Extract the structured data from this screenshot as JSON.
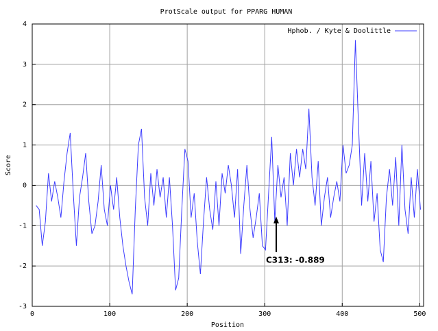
{
  "chart_data": {
    "type": "line",
    "title": "ProtScale output for PPARG HUMAN",
    "x_label": "Position",
    "y_label": "Score",
    "xlim": [
      0,
      505
    ],
    "ylim": [
      -3,
      4
    ],
    "xticks": [
      0,
      100,
      200,
      300,
      400,
      500
    ],
    "yticks": [
      -3,
      -2,
      -1,
      0,
      1,
      2,
      3,
      4
    ],
    "grid": true,
    "legend": "top-right",
    "x": [
      5,
      9,
      13,
      17,
      21,
      25,
      29,
      33,
      37,
      41,
      45,
      49,
      53,
      57,
      61,
      65,
      69,
      73,
      77,
      81,
      85,
      89,
      93,
      97,
      101,
      105,
      109,
      113,
      117,
      121,
      125,
      129,
      133,
      137,
      141,
      145,
      149,
      153,
      157,
      161,
      165,
      169,
      173,
      177,
      181,
      185,
      189,
      193,
      197,
      201,
      205,
      209,
      213,
      217,
      221,
      225,
      229,
      233,
      237,
      241,
      245,
      249,
      253,
      257,
      261,
      265,
      269,
      273,
      277,
      281,
      285,
      289,
      293,
      297,
      301,
      305,
      309,
      313,
      317,
      321,
      325,
      329,
      333,
      337,
      341,
      345,
      349,
      353,
      357,
      361,
      365,
      369,
      373,
      377,
      381,
      385,
      389,
      393,
      397,
      401,
      405,
      409,
      413,
      417,
      421,
      425,
      429,
      433,
      437,
      441,
      445,
      449,
      453,
      457,
      461,
      465,
      469,
      473,
      477,
      481,
      485,
      489,
      493,
      497,
      501
    ],
    "series": [
      {
        "name": "Hphob. / Kyte & Doolittle",
        "color": "#3c3cff",
        "values": [
          -0.5,
          -0.6,
          -1.5,
          -0.9,
          0.3,
          -0.4,
          0.1,
          -0.3,
          -0.8,
          0.1,
          0.8,
          1.3,
          -0.2,
          -1.5,
          -0.3,
          0.2,
          0.8,
          -0.4,
          -1.2,
          -1.0,
          -0.4,
          0.5,
          -0.6,
          -1.0,
          0.0,
          -0.6,
          0.2,
          -0.8,
          -1.5,
          -2.0,
          -2.4,
          -2.7,
          -0.6,
          1.0,
          1.4,
          -0.3,
          -1.0,
          0.3,
          -0.5,
          0.4,
          -0.3,
          0.2,
          -0.8,
          0.2,
          -1.0,
          -2.6,
          -2.3,
          -0.6,
          0.9,
          0.6,
          -0.8,
          -0.2,
          -1.4,
          -2.2,
          -0.9,
          0.2,
          -0.6,
          -1.1,
          0.1,
          -1.0,
          0.3,
          -0.2,
          0.5,
          0.0,
          -0.8,
          0.4,
          -1.7,
          -0.5,
          0.5,
          -0.6,
          -1.3,
          -0.8,
          -0.2,
          -1.5,
          -1.6,
          -0.2,
          1.2,
          -0.889,
          0.5,
          -0.3,
          0.2,
          -1.0,
          0.8,
          0.0,
          0.9,
          0.2,
          0.9,
          0.4,
          1.9,
          0.2,
          -0.5,
          0.6,
          -1.0,
          -0.3,
          0.2,
          -0.8,
          -0.3,
          0.1,
          -0.4,
          1.0,
          0.3,
          0.5,
          1.0,
          3.6,
          1.5,
          -0.5,
          0.8,
          -0.4,
          0.6,
          -0.9,
          -0.2,
          -1.6,
          -1.9,
          -0.3,
          0.4,
          -0.5,
          0.7,
          -1.0,
          1.0,
          -0.6,
          -1.2,
          0.2,
          -0.8,
          0.4,
          -0.6
        ]
      }
    ],
    "annotations": [
      {
        "text": "C313: -0.889"
      }
    ]
  }
}
